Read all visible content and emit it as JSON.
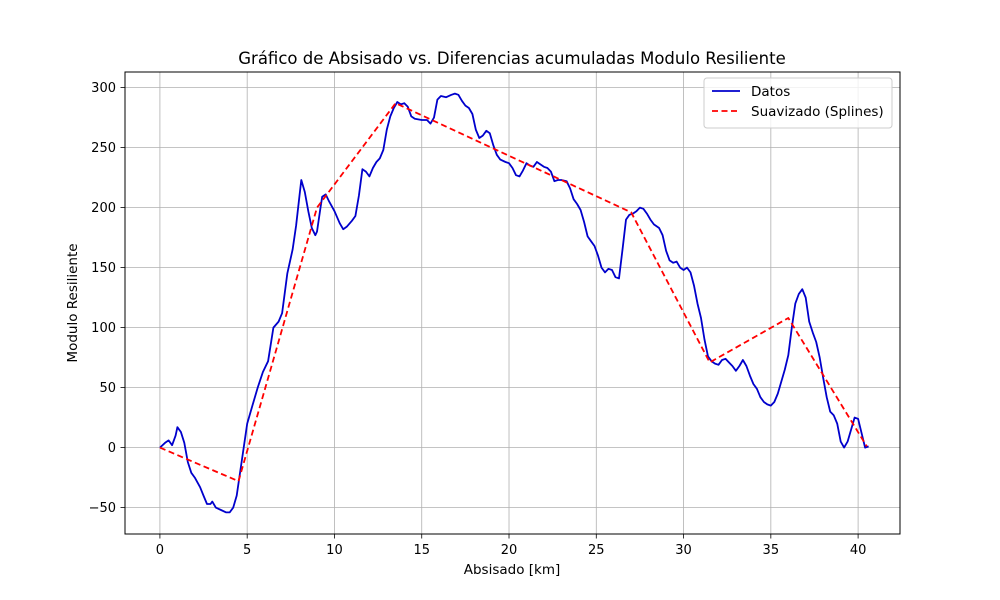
{
  "chart_data": {
    "type": "line",
    "title": "Gráfico de Absisado vs. Diferencias acumuladas Modulo Resiliente",
    "xlabel": "Absisado [km]",
    "ylabel": "Modulo Resiliente",
    "xlim": [
      -2.0,
      42.4
    ],
    "ylim": [
      -72,
      313
    ],
    "xticks": [
      0,
      5,
      10,
      15,
      20,
      25,
      30,
      35,
      40
    ],
    "yticks": [
      -50,
      0,
      50,
      100,
      150,
      200,
      250,
      300
    ],
    "grid": true,
    "legend_position": "top-right",
    "series": [
      {
        "name": "Datos",
        "color": "#0000cc",
        "style": "solid",
        "points": [
          [
            0.0,
            0
          ],
          [
            0.3,
            4
          ],
          [
            0.5,
            6
          ],
          [
            0.7,
            2
          ],
          [
            0.9,
            10
          ],
          [
            1.0,
            17
          ],
          [
            1.2,
            13
          ],
          [
            1.4,
            4
          ],
          [
            1.6,
            -12
          ],
          [
            1.8,
            -21
          ],
          [
            2.0,
            -25
          ],
          [
            2.3,
            -33
          ],
          [
            2.5,
            -40
          ],
          [
            2.7,
            -47
          ],
          [
            2.9,
            -47
          ],
          [
            3.0,
            -45
          ],
          [
            3.2,
            -50
          ],
          [
            3.5,
            -52
          ],
          [
            3.8,
            -54
          ],
          [
            4.0,
            -54
          ],
          [
            4.2,
            -50
          ],
          [
            4.4,
            -40
          ],
          [
            4.6,
            -20
          ],
          [
            4.8,
            0
          ],
          [
            5.0,
            20
          ],
          [
            5.3,
            35
          ],
          [
            5.6,
            50
          ],
          [
            5.9,
            63
          ],
          [
            6.2,
            72
          ],
          [
            6.5,
            100
          ],
          [
            6.8,
            105
          ],
          [
            7.0,
            112
          ],
          [
            7.3,
            145
          ],
          [
            7.6,
            165
          ],
          [
            7.8,
            185
          ],
          [
            8.0,
            210
          ],
          [
            8.1,
            223
          ],
          [
            8.3,
            213
          ],
          [
            8.5,
            197
          ],
          [
            8.7,
            183
          ],
          [
            8.9,
            177
          ],
          [
            9.0,
            180
          ],
          [
            9.2,
            200
          ],
          [
            9.3,
            209
          ],
          [
            9.5,
            211
          ],
          [
            9.7,
            205
          ],
          [
            10.0,
            197
          ],
          [
            10.3,
            187
          ],
          [
            10.5,
            182
          ],
          [
            10.7,
            184
          ],
          [
            11.0,
            189
          ],
          [
            11.2,
            193
          ],
          [
            11.4,
            210
          ],
          [
            11.6,
            232
          ],
          [
            11.8,
            230
          ],
          [
            12.0,
            226
          ],
          [
            12.2,
            233
          ],
          [
            12.4,
            238
          ],
          [
            12.6,
            241
          ],
          [
            12.8,
            248
          ],
          [
            13.0,
            265
          ],
          [
            13.2,
            276
          ],
          [
            13.4,
            283
          ],
          [
            13.6,
            288
          ],
          [
            13.8,
            286
          ],
          [
            14.0,
            287
          ],
          [
            14.2,
            284
          ],
          [
            14.4,
            276
          ],
          [
            14.6,
            274
          ],
          [
            15.0,
            273
          ],
          [
            15.3,
            273
          ],
          [
            15.5,
            270
          ],
          [
            15.7,
            275
          ],
          [
            15.9,
            290
          ],
          [
            16.1,
            293
          ],
          [
            16.4,
            292
          ],
          [
            16.7,
            294
          ],
          [
            16.9,
            295
          ],
          [
            17.1,
            294
          ],
          [
            17.3,
            289
          ],
          [
            17.5,
            285
          ],
          [
            17.7,
            283
          ],
          [
            17.9,
            278
          ],
          [
            18.1,
            265
          ],
          [
            18.3,
            258
          ],
          [
            18.5,
            260
          ],
          [
            18.7,
            264
          ],
          [
            18.9,
            262
          ],
          [
            19.1,
            252
          ],
          [
            19.3,
            244
          ],
          [
            19.5,
            240
          ],
          [
            19.8,
            238
          ],
          [
            20.0,
            237
          ],
          [
            20.2,
            233
          ],
          [
            20.4,
            227
          ],
          [
            20.6,
            226
          ],
          [
            20.8,
            231
          ],
          [
            21.0,
            237
          ],
          [
            21.2,
            235
          ],
          [
            21.4,
            234
          ],
          [
            21.6,
            238
          ],
          [
            21.8,
            236
          ],
          [
            22.0,
            234
          ],
          [
            22.2,
            233
          ],
          [
            22.4,
            230
          ],
          [
            22.6,
            222
          ],
          [
            22.8,
            223
          ],
          [
            23.0,
            223
          ],
          [
            23.3,
            222
          ],
          [
            23.5,
            216
          ],
          [
            23.7,
            207
          ],
          [
            23.9,
            203
          ],
          [
            24.1,
            198
          ],
          [
            24.3,
            188
          ],
          [
            24.5,
            176
          ],
          [
            24.7,
            172
          ],
          [
            24.9,
            168
          ],
          [
            25.1,
            160
          ],
          [
            25.3,
            150
          ],
          [
            25.5,
            146
          ],
          [
            25.7,
            149
          ],
          [
            25.9,
            148
          ],
          [
            26.1,
            142
          ],
          [
            26.3,
            141
          ],
          [
            26.5,
            165
          ],
          [
            26.7,
            190
          ],
          [
            26.9,
            194
          ],
          [
            27.1,
            195
          ],
          [
            27.3,
            197
          ],
          [
            27.5,
            200
          ],
          [
            27.7,
            199
          ],
          [
            27.9,
            195
          ],
          [
            28.1,
            190
          ],
          [
            28.3,
            186
          ],
          [
            28.6,
            183
          ],
          [
            28.8,
            177
          ],
          [
            29.0,
            164
          ],
          [
            29.2,
            156
          ],
          [
            29.4,
            154
          ],
          [
            29.6,
            155
          ],
          [
            29.8,
            150
          ],
          [
            30.0,
            148
          ],
          [
            30.2,
            150
          ],
          [
            30.4,
            146
          ],
          [
            30.6,
            135
          ],
          [
            30.8,
            120
          ],
          [
            31.0,
            108
          ],
          [
            31.2,
            90
          ],
          [
            31.4,
            76
          ],
          [
            31.6,
            72
          ],
          [
            31.8,
            70
          ],
          [
            32.0,
            69
          ],
          [
            32.2,
            73
          ],
          [
            32.4,
            74
          ],
          [
            32.6,
            71
          ],
          [
            32.8,
            68
          ],
          [
            33.0,
            64
          ],
          [
            33.2,
            68
          ],
          [
            33.4,
            73
          ],
          [
            33.6,
            68
          ],
          [
            33.8,
            60
          ],
          [
            34.0,
            53
          ],
          [
            34.2,
            49
          ],
          [
            34.4,
            42
          ],
          [
            34.6,
            38
          ],
          [
            34.8,
            36
          ],
          [
            35.0,
            35
          ],
          [
            35.2,
            38
          ],
          [
            35.4,
            45
          ],
          [
            35.6,
            55
          ],
          [
            35.8,
            65
          ],
          [
            36.0,
            77
          ],
          [
            36.2,
            100
          ],
          [
            36.4,
            120
          ],
          [
            36.6,
            128
          ],
          [
            36.8,
            132
          ],
          [
            37.0,
            125
          ],
          [
            37.2,
            105
          ],
          [
            37.4,
            96
          ],
          [
            37.6,
            88
          ],
          [
            37.8,
            75
          ],
          [
            38.0,
            58
          ],
          [
            38.2,
            42
          ],
          [
            38.4,
            30
          ],
          [
            38.6,
            27
          ],
          [
            38.8,
            20
          ],
          [
            39.0,
            5
          ],
          [
            39.2,
            0
          ],
          [
            39.4,
            5
          ],
          [
            39.6,
            15
          ],
          [
            39.8,
            25
          ],
          [
            40.0,
            24
          ],
          [
            40.2,
            12
          ],
          [
            40.4,
            0
          ],
          [
            40.6,
            1
          ]
        ]
      },
      {
        "name": "Suavizado (Splines)",
        "color": "#ff0000",
        "style": "dashed",
        "points": [
          [
            0.0,
            0
          ],
          [
            4.5,
            -28
          ],
          [
            9.0,
            200
          ],
          [
            13.5,
            287
          ],
          [
            27.0,
            196
          ],
          [
            31.5,
            71
          ],
          [
            36.0,
            108
          ],
          [
            40.5,
            1
          ]
        ]
      }
    ]
  }
}
